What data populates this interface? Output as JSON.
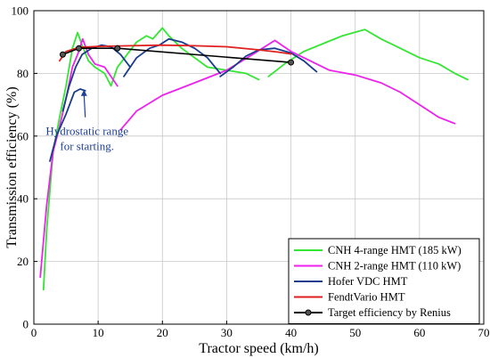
{
  "chart_data": {
    "type": "line",
    "title": "",
    "xlabel": "Tractor speed (km/h)",
    "ylabel": "Transmission efficiency (%)",
    "xlim": [
      0,
      70
    ],
    "ylim": [
      0,
      100
    ],
    "x_ticks": [
      0,
      10,
      20,
      30,
      40,
      50,
      60,
      70
    ],
    "y_ticks": [
      0,
      20,
      40,
      60,
      80,
      100
    ],
    "grid": true,
    "legend_position": "bottom-right",
    "colors": {
      "cnh4": "#33e633",
      "cnh2": "#ee22ee",
      "hofer": "#1a3c8c",
      "fendt": "#e0201e",
      "target": "#000000",
      "annotation": "#1f3f9a"
    },
    "series": [
      {
        "name": "CNH 4-range HMT (185 kW)",
        "key": "cnh4",
        "segments": [
          [
            [
              1.5,
              11
            ],
            [
              2,
              30
            ],
            [
              3,
              55
            ],
            [
              4,
              66
            ],
            [
              5,
              76
            ],
            [
              6,
              88
            ],
            [
              6.8,
              93
            ],
            [
              7.5,
              89
            ],
            [
              8.5,
              84
            ],
            [
              9.5,
              82
            ],
            [
              11,
              80
            ],
            [
              12,
              76
            ],
            [
              13,
              82
            ],
            [
              14.5,
              86
            ],
            [
              16,
              90
            ],
            [
              17.5,
              92
            ],
            [
              18.5,
              91
            ],
            [
              20,
              94.5
            ],
            [
              21,
              92
            ],
            [
              23,
              88
            ],
            [
              25,
              85
            ],
            [
              27,
              82
            ],
            [
              30,
              81
            ],
            [
              33,
              80
            ],
            [
              35,
              78
            ]
          ],
          [
            [
              36.5,
              79
            ],
            [
              39,
              83
            ],
            [
              42,
              87
            ],
            [
              45,
              89.5
            ],
            [
              48,
              92
            ],
            [
              51.5,
              94
            ],
            [
              54,
              91
            ],
            [
              57,
              88
            ],
            [
              60,
              85
            ],
            [
              63,
              83
            ],
            [
              65.5,
              80
            ],
            [
              67.5,
              78
            ]
          ]
        ]
      },
      {
        "name": "CNH 2-range HMT (110 kW)",
        "key": "cnh2",
        "segments": [
          [
            [
              1,
              15
            ],
            [
              2,
              38
            ],
            [
              3,
              55
            ],
            [
              4,
              63
            ],
            [
              5,
              72
            ],
            [
              6,
              82
            ],
            [
              7,
              87
            ],
            [
              7.6,
              91
            ],
            [
              8.5,
              86
            ],
            [
              9.5,
              83
            ],
            [
              11,
              82
            ],
            [
              12,
              79
            ],
            [
              13,
              76
            ]
          ],
          [
            [
              13.5,
              62
            ],
            [
              16,
              68
            ],
            [
              20,
              73
            ],
            [
              25,
              77
            ],
            [
              30,
              81
            ],
            [
              34,
              86
            ],
            [
              37.5,
              90.5
            ],
            [
              40,
              87
            ],
            [
              43,
              84
            ],
            [
              46,
              81
            ],
            [
              50,
              79.5
            ],
            [
              54,
              77
            ],
            [
              57,
              74
            ],
            [
              60,
              70
            ],
            [
              63,
              66
            ],
            [
              65.5,
              64
            ]
          ]
        ]
      },
      {
        "name": "Hofer VDC HMT",
        "key": "hofer",
        "segments": [
          [
            [
              2.5,
              52
            ],
            [
              3.5,
              60
            ],
            [
              5,
              67
            ],
            [
              6.3,
              74
            ],
            [
              7.2,
              75
            ],
            [
              8,
              74.5
            ]
          ],
          [
            [
              4.5,
              68
            ],
            [
              5.5,
              76
            ],
            [
              6.5,
              82
            ],
            [
              7.5,
              86
            ],
            [
              9,
              88
            ],
            [
              10.5,
              89
            ],
            [
              12,
              88.5
            ],
            [
              13.5,
              86
            ],
            [
              15,
              82
            ]
          ],
          [
            [
              14,
              79
            ],
            [
              16,
              85
            ],
            [
              18,
              88
            ],
            [
              19.5,
              89
            ],
            [
              21,
              91
            ],
            [
              23,
              90
            ],
            [
              25,
              88
            ],
            [
              27,
              85
            ],
            [
              29,
              80
            ]
          ],
          [
            [
              29,
              79
            ],
            [
              31,
              82
            ],
            [
              33,
              85.5
            ],
            [
              35,
              87.5
            ],
            [
              37.5,
              88
            ],
            [
              40,
              86.5
            ],
            [
              42,
              84
            ],
            [
              44,
              80.5
            ]
          ]
        ]
      },
      {
        "name": "FendtVario HMT",
        "key": "fendt",
        "segments": [
          [
            [
              4,
              84
            ],
            [
              5,
              87
            ],
            [
              7,
              88.3
            ],
            [
              10,
              88.6
            ],
            [
              15,
              88.8
            ],
            [
              20,
              89
            ],
            [
              25,
              88.8
            ],
            [
              30,
              88.5
            ],
            [
              35,
              87.5
            ],
            [
              38,
              86.8
            ],
            [
              40,
              86.2
            ]
          ]
        ]
      },
      {
        "name": "Target efficiency by Renius",
        "key": "target",
        "markers": true,
        "segments": [
          [
            [
              4.5,
              86
            ],
            [
              7,
              88
            ],
            [
              13,
              88
            ],
            [
              40,
              83.5
            ]
          ]
        ]
      }
    ],
    "annotations": [
      {
        "text_lines": [
          "Hydrostatic range",
          "for starting."
        ],
        "arrow_from": [
          8,
          66
        ],
        "arrow_to": [
          7.8,
          74.8
        ]
      }
    ]
  }
}
